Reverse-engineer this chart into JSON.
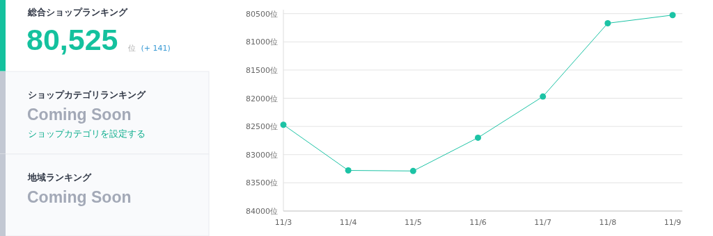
{
  "chart_data": [
    {
      "type": "other",
      "title": "総合ショップランキング",
      "annotations": [
        "80,525",
        "位",
        "(+ 141)"
      ]
    },
    {
      "type": "other",
      "title": "ショップカテゴリランキング",
      "annotations": [
        "Coming Soon",
        "ショップカテゴリを設定する"
      ]
    },
    {
      "type": "other",
      "title": "地域ランキング",
      "annotations": [
        "Coming Soon"
      ]
    },
    {
      "type": "line",
      "categories": [
        "11/3",
        "11/4",
        "11/5",
        "11/6",
        "11/7",
        "11/8",
        "11/9"
      ],
      "values": [
        82470,
        83280,
        83290,
        82700,
        81970,
        80670,
        80525
      ],
      "color": "#1cc3a5",
      "marker": "circle",
      "grid": "y",
      "ylim": [
        84000,
        80430
      ],
      "yticks": [
        {
          "value": 80500,
          "label": "80500位"
        },
        {
          "value": 81000,
          "label": "81000位"
        },
        {
          "value": 81500,
          "label": "81500位"
        },
        {
          "value": 82000,
          "label": "82000位"
        },
        {
          "value": 82500,
          "label": "82500位"
        },
        {
          "value": 83000,
          "label": "83000位"
        },
        {
          "value": 83500,
          "label": "83500位"
        },
        {
          "value": 84000,
          "label": "84000位"
        }
      ]
    }
  ]
}
